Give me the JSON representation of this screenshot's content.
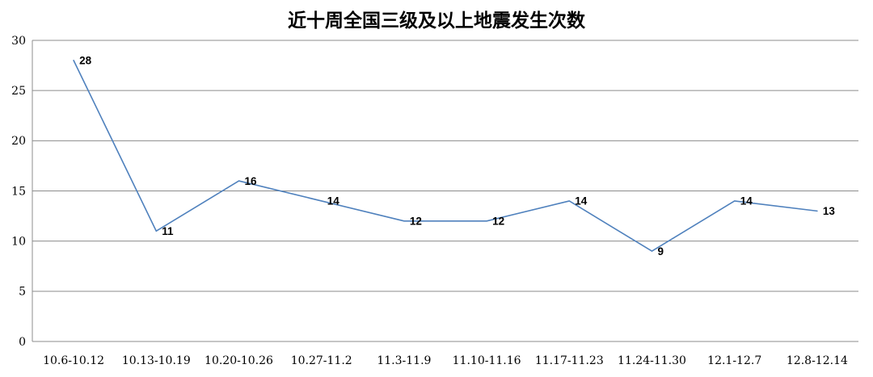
{
  "chart_data": {
    "type": "line",
    "title": "近十周全国三级及以上地震发生次数",
    "categories": [
      "10.6-10.12",
      "10.13-10.19",
      "10.20-10.26",
      "10.27-11.2",
      "11.3-11.9",
      "11.10-11.16",
      "11.17-11.23",
      "11.24-11.30",
      "12.1-12.7",
      "12.8-12.14"
    ],
    "values": [
      28,
      11,
      16,
      14,
      12,
      12,
      14,
      9,
      14,
      13
    ],
    "xlabel": "",
    "ylabel": "",
    "ylim": [
      0,
      30
    ],
    "yticks": [
      0,
      5,
      10,
      15,
      20,
      25,
      30
    ],
    "grid": true,
    "legend": "none",
    "markers": false,
    "data_labels_shown": true,
    "colors": {
      "line": "#4F81BD",
      "grid": "#8C8C8C",
      "text": "#000000",
      "background": "#FFFFFF"
    }
  }
}
